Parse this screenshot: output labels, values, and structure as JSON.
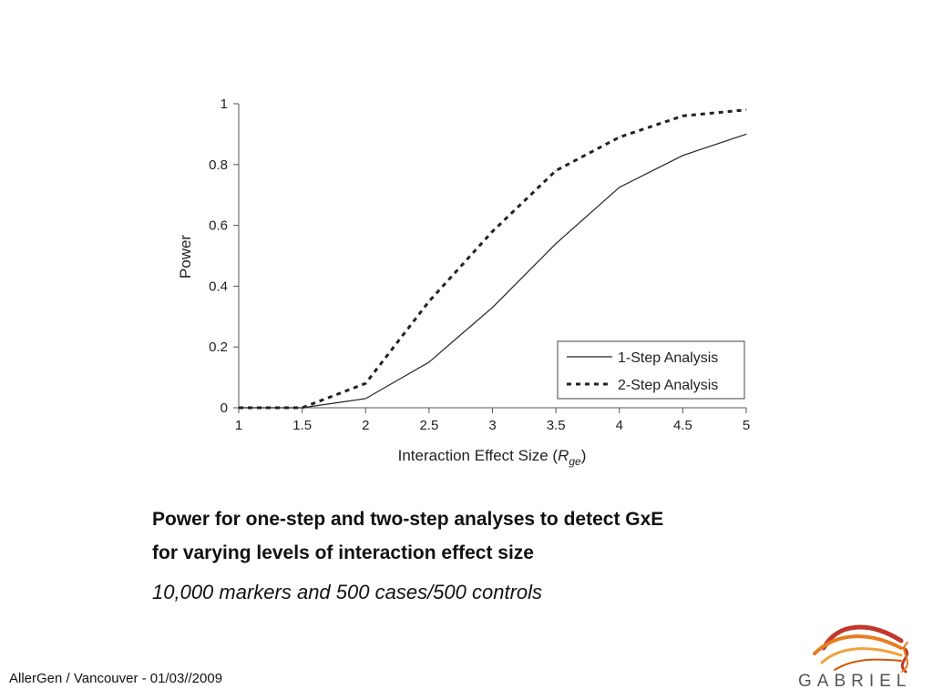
{
  "chart_data": {
    "type": "line",
    "x": [
      1,
      1.5,
      2,
      2.5,
      3,
      3.5,
      4,
      4.5,
      5
    ],
    "xlabel": "Interaction Effect Size (",
    "xlabel_var": "R",
    "xlabel_sub": "ge",
    "xlabel_close": ")",
    "ylabel": "Power",
    "xlim": [
      1,
      5
    ],
    "ylim": [
      0,
      1
    ],
    "xticks": [
      "1",
      "1.5",
      "2",
      "2.5",
      "3",
      "3.5",
      "4",
      "4.5",
      "5"
    ],
    "yticks": [
      "0",
      "0.2",
      "0.4",
      "0.6",
      "0.8",
      "1"
    ],
    "grid": false,
    "legend_position": "bottom-right",
    "series": [
      {
        "name": "1-Step Analysis",
        "style": "solid",
        "values": [
          0.0,
          0.0,
          0.03,
          0.15,
          0.33,
          0.54,
          0.725,
          0.83,
          0.9
        ]
      },
      {
        "name": "2-Step Analysis",
        "style": "dashed",
        "values": [
          0.0,
          0.0,
          0.08,
          0.35,
          0.58,
          0.78,
          0.89,
          0.96,
          0.98
        ]
      }
    ]
  },
  "caption": {
    "title_line1": "Power for one-step and two-step analyses to detect GxE",
    "title_line2": "for varying levels of interaction effect size",
    "subtitle": "10,000 markers and 500 cases/500 controls"
  },
  "footer": {
    "text": "AllerGen / Vancouver - 01/03//2009"
  },
  "logo": {
    "text": "GABRIEL",
    "icon": "gabriel-logo-icon",
    "colors": [
      "#c0392b",
      "#e67e22",
      "#f1a33c",
      "#d35400"
    ]
  }
}
